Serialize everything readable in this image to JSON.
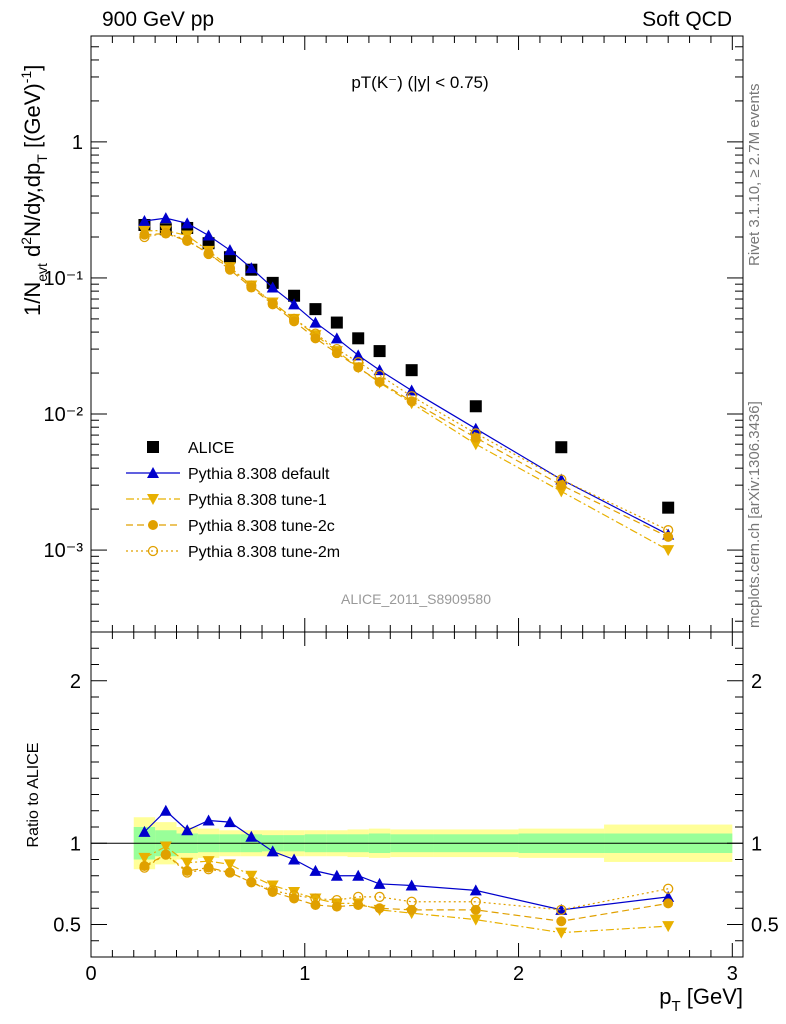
{
  "header": {
    "left": "900 GeV pp",
    "right": "Soft QCD"
  },
  "side_labels": {
    "top": "Rivet 3.1.10, ≥ 2.7M events",
    "bottom": "mcplots.cern.ch [arXiv:1306.3436]"
  },
  "watermark": "ALICE_2011_S8909580",
  "chart_data": [
    {
      "type": "scatter",
      "panel": "main",
      "title": "pT(K⁻) (|y| < 0.75)",
      "ylabel": "1/N_evt d²N/dy,dp_T [(GeV)⁻¹]",
      "yscale": "log",
      "xlim": [
        0,
        3.05
      ],
      "ylim": [
        0.00025,
        6
      ],
      "yticks": [
        "10⁻³",
        "10⁻²",
        "10⁻¹",
        "1"
      ],
      "legend_position": "lower-left",
      "x": [
        0.25,
        0.35,
        0.45,
        0.55,
        0.65,
        0.75,
        0.85,
        0.95,
        1.05,
        1.15,
        1.25,
        1.35,
        1.5,
        1.8,
        2.2,
        2.7
      ],
      "series": [
        {
          "name": "ALICE",
          "style": "data",
          "color": "#000000",
          "marker": "square",
          "values": [
            0.245,
            0.228,
            0.233,
            0.18,
            0.142,
            0.115,
            0.092,
            0.074,
            0.059,
            0.047,
            0.036,
            0.029,
            0.021,
            0.0114,
            0.0057,
            0.00205
          ]
        },
        {
          "name": "Pythia 8.308 default",
          "style": "solid",
          "color": "#0000cc",
          "marker": "triangle-up",
          "values": [
            0.262,
            0.275,
            0.252,
            0.205,
            0.16,
            0.118,
            0.085,
            0.064,
            0.047,
            0.036,
            0.027,
            0.021,
            0.0149,
            0.0078,
            0.0033,
            0.0013
          ]
        },
        {
          "name": "Pythia 8.308 tune-1",
          "style": "dashdot",
          "color": "#e8b000",
          "marker": "triangle-down",
          "values": [
            0.222,
            0.223,
            0.205,
            0.158,
            0.12,
            0.088,
            0.066,
            0.05,
            0.038,
            0.029,
            0.022,
            0.017,
            0.012,
            0.006,
            0.0027,
            0.001
          ]
        },
        {
          "name": "Pythia 8.308 tune-2c",
          "style": "dashed",
          "color": "#e0a000",
          "marker": "circle-filled",
          "values": [
            0.208,
            0.212,
            0.187,
            0.152,
            0.115,
            0.085,
            0.064,
            0.048,
            0.036,
            0.028,
            0.022,
            0.0172,
            0.0124,
            0.0067,
            0.003,
            0.00125
          ]
        },
        {
          "name": "Pythia 8.308 tune-2m",
          "style": "dotted",
          "color": "#e0a000",
          "marker": "circle-open",
          "values": [
            0.2,
            0.214,
            0.19,
            0.15,
            0.118,
            0.088,
            0.065,
            0.05,
            0.039,
            0.03,
            0.024,
            0.0193,
            0.0135,
            0.0072,
            0.0033,
            0.0014
          ]
        }
      ]
    },
    {
      "type": "scatter",
      "panel": "ratio",
      "xlabel": "p_T [GeV]",
      "ylabel": "Ratio to ALICE",
      "xlim": [
        0,
        3.05
      ],
      "ylim": [
        0.3,
        2.3
      ],
      "xticks": [
        0,
        1,
        2,
        3
      ],
      "yticks": [
        0.5,
        1,
        2
      ],
      "x": [
        0.25,
        0.35,
        0.45,
        0.55,
        0.65,
        0.75,
        0.85,
        0.95,
        1.05,
        1.15,
        1.25,
        1.35,
        1.5,
        1.8,
        2.2,
        2.7
      ],
      "bands": {
        "bin_edges": [
          0.2,
          0.3,
          0.4,
          0.5,
          0.6,
          0.7,
          0.8,
          0.9,
          1.0,
          1.1,
          1.2,
          1.3,
          1.4,
          1.6,
          2.0,
          2.4,
          3.0
        ],
        "stat_half_width": [
          0.1,
          0.08,
          0.06,
          0.055,
          0.055,
          0.055,
          0.05,
          0.05,
          0.055,
          0.055,
          0.055,
          0.06,
          0.055,
          0.055,
          0.06,
          0.06
        ],
        "total_half_width": [
          0.16,
          0.13,
          0.1,
          0.09,
          0.08,
          0.08,
          0.08,
          0.08,
          0.08,
          0.08,
          0.085,
          0.09,
          0.085,
          0.085,
          0.09,
          0.115
        ],
        "stat_color": "#99ff99",
        "total_color": "#ffff99"
      },
      "series": [
        {
          "name": "Pythia 8.308 default",
          "style": "solid",
          "color": "#0000cc",
          "marker": "triangle-up",
          "values": [
            1.07,
            1.2,
            1.08,
            1.14,
            1.13,
            1.04,
            0.95,
            0.9,
            0.83,
            0.8,
            0.8,
            0.75,
            0.74,
            0.71,
            0.59,
            0.67
          ]
        },
        {
          "name": "Pythia 8.308 tune-1",
          "style": "dashdot",
          "color": "#e8b000",
          "marker": "triangle-down",
          "values": [
            0.91,
            0.98,
            0.88,
            0.89,
            0.87,
            0.8,
            0.74,
            0.7,
            0.66,
            0.63,
            0.63,
            0.59,
            0.57,
            0.53,
            0.45,
            0.49
          ]
        },
        {
          "name": "Pythia 8.308 tune-2c",
          "style": "dashed",
          "color": "#e0a000",
          "marker": "circle-filled",
          "values": [
            0.86,
            0.93,
            0.83,
            0.85,
            0.82,
            0.76,
            0.7,
            0.66,
            0.62,
            0.61,
            0.62,
            0.6,
            0.59,
            0.59,
            0.52,
            0.63
          ]
        },
        {
          "name": "Pythia 8.308 tune-2m",
          "style": "dotted",
          "color": "#e0a000",
          "marker": "circle-open",
          "values": [
            0.85,
            0.93,
            0.82,
            0.84,
            0.82,
            0.76,
            0.71,
            0.68,
            0.66,
            0.65,
            0.67,
            0.67,
            0.64,
            0.64,
            0.59,
            0.72
          ]
        }
      ]
    }
  ]
}
